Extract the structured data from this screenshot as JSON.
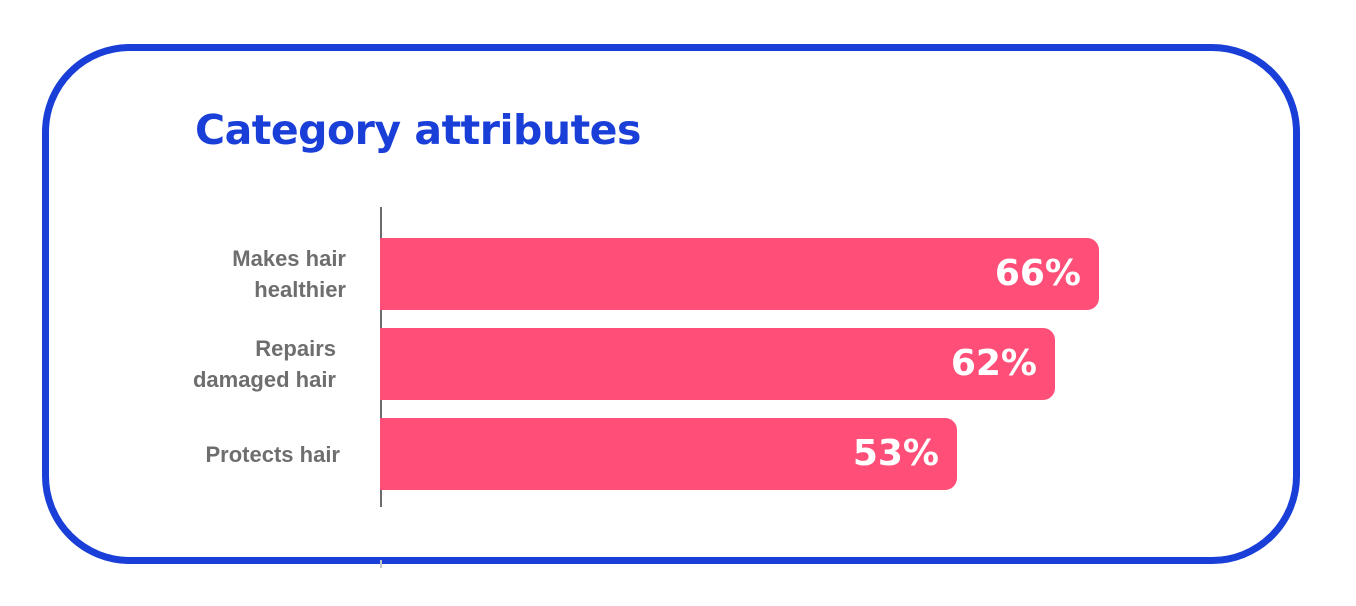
{
  "chart_data": {
    "type": "bar",
    "orientation": "horizontal",
    "title": "Category attributes",
    "categories": [
      "Makes hair\nhealthier",
      "Repairs\ndamaged hair",
      "Protects hair"
    ],
    "values": [
      66,
      62,
      53
    ],
    "value_labels": [
      "66%",
      "62%",
      "53%"
    ],
    "unit": "%",
    "xlim": [
      0,
      100
    ],
    "grid": false,
    "legend": "none",
    "colors": {
      "bar": "#ff4f78",
      "title": "#1a3fd8",
      "border": "#1a3fd8",
      "label": "#6e6e6e",
      "value_text": "#ffffff"
    }
  }
}
